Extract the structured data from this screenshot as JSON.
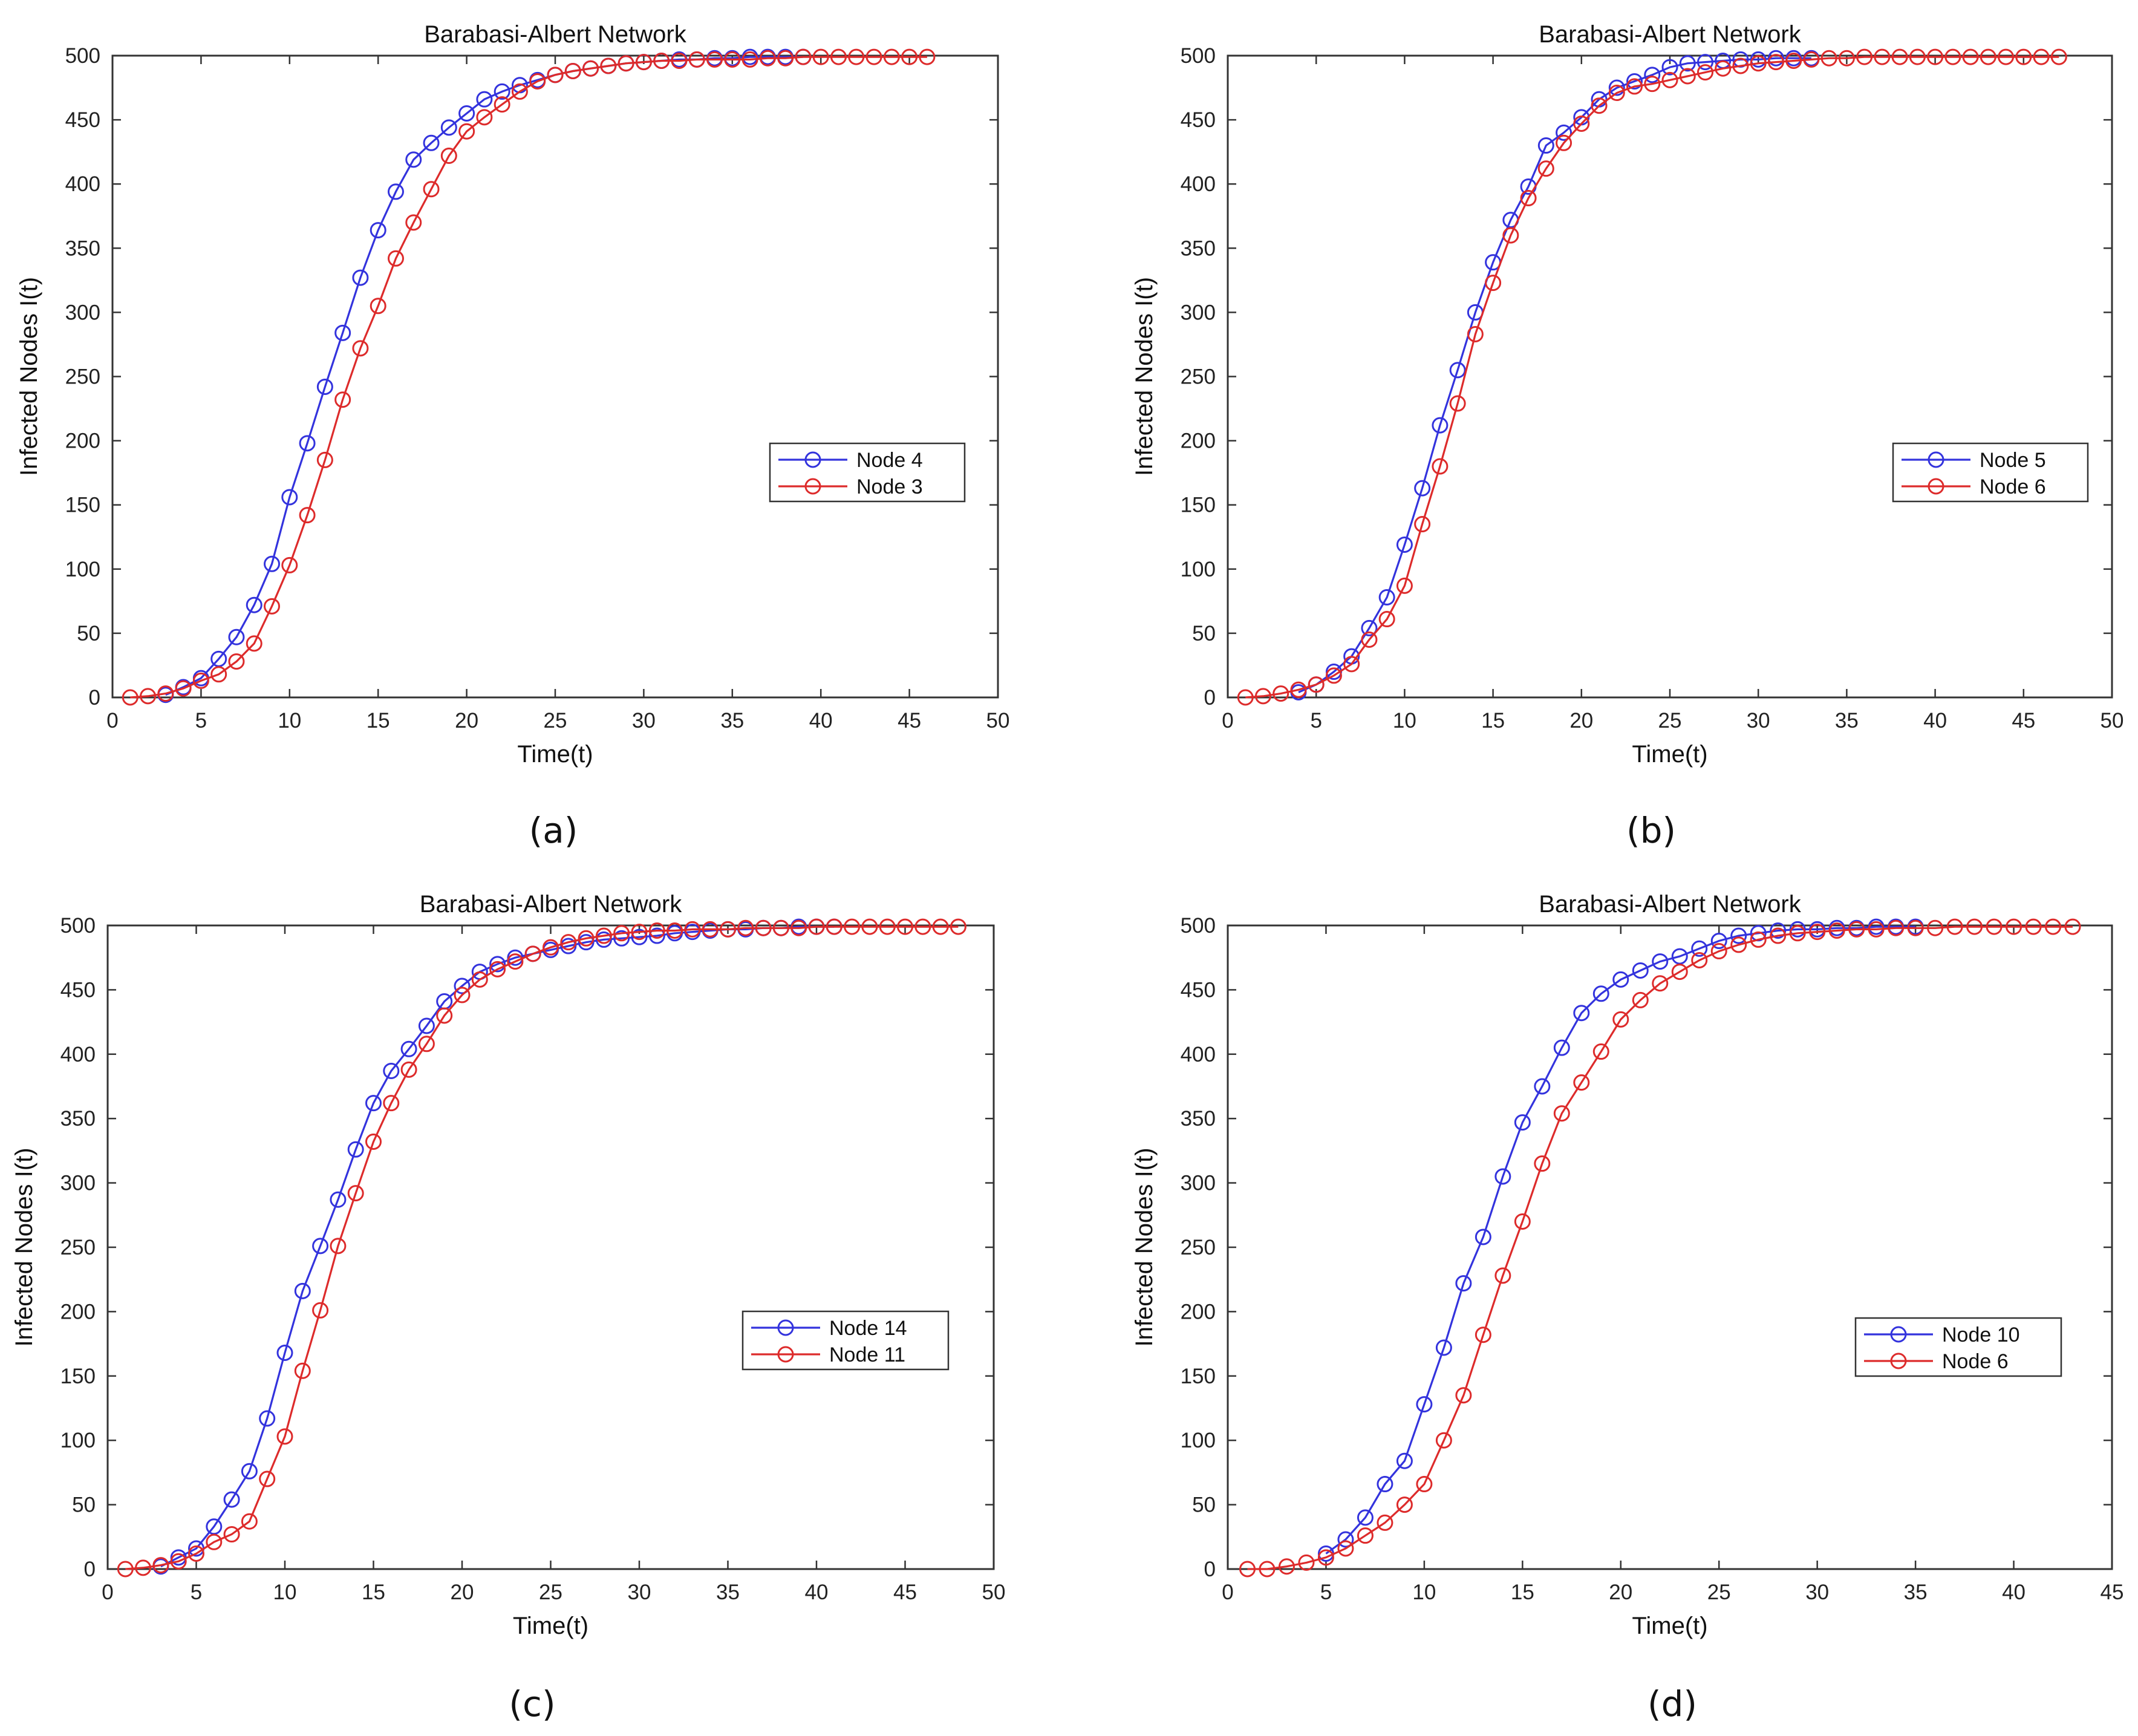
{
  "chart_data": [
    {
      "panel": "(a)",
      "type": "line",
      "title": "Barabasi-Albert Network",
      "xlabel": "Time(t)",
      "ylabel": "Infected Nodes I(t)",
      "xlim": [
        0,
        50
      ],
      "ylim": [
        0,
        500
      ],
      "xticks": [
        0,
        5,
        10,
        15,
        20,
        25,
        30,
        35,
        40,
        45,
        50
      ],
      "yticks": [
        0,
        50,
        100,
        150,
        200,
        250,
        300,
        350,
        400,
        450,
        500
      ],
      "legend_position": "right-middle",
      "series": [
        {
          "name": "Node 4",
          "color": "#3333dd",
          "x": [
            3,
            4,
            5,
            6,
            7,
            8,
            9,
            10,
            11,
            12,
            13,
            14,
            15,
            16,
            17,
            18,
            19,
            20,
            21,
            22,
            23,
            24,
            25,
            26,
            27,
            28,
            29,
            30,
            31,
            32,
            33,
            34,
            35,
            36,
            37,
            38,
            39
          ],
          "y": [
            2,
            8,
            15,
            30,
            47,
            72,
            104,
            156,
            198,
            242,
            284,
            327,
            364,
            394,
            419,
            432,
            444,
            455,
            466,
            472,
            477,
            481,
            485,
            488,
            490,
            492,
            494,
            495,
            496,
            497,
            497,
            498,
            498,
            499,
            499,
            499,
            499
          ]
        },
        {
          "name": "Node 3",
          "color": "#dd2b2b",
          "x": [
            1,
            2,
            3,
            4,
            5,
            6,
            7,
            8,
            9,
            10,
            11,
            12,
            13,
            14,
            15,
            16,
            17,
            18,
            19,
            20,
            21,
            22,
            23,
            24,
            25,
            26,
            27,
            28,
            29,
            30,
            31,
            32,
            33,
            34,
            35,
            36,
            37,
            38,
            39,
            40,
            41,
            42,
            43,
            44,
            45,
            46
          ],
          "y": [
            0,
            1,
            3,
            7,
            13,
            18,
            28,
            42,
            71,
            103,
            142,
            185,
            232,
            272,
            305,
            342,
            370,
            396,
            422,
            441,
            452,
            462,
            472,
            480,
            485,
            488,
            490,
            492,
            494,
            495,
            496,
            496,
            497,
            497,
            497,
            497,
            498,
            498,
            499,
            499,
            499,
            499,
            499,
            499,
            499,
            499
          ]
        }
      ]
    },
    {
      "panel": "(b)",
      "type": "line",
      "title": "Barabasi-Albert Network",
      "xlabel": "Time(t)",
      "ylabel": "Infected Nodes I(t)",
      "xlim": [
        0,
        50
      ],
      "ylim": [
        0,
        500
      ],
      "xticks": [
        0,
        5,
        10,
        15,
        20,
        25,
        30,
        35,
        40,
        45,
        50
      ],
      "yticks": [
        0,
        50,
        100,
        150,
        200,
        250,
        300,
        350,
        400,
        450,
        500
      ],
      "legend_position": "right-middle",
      "series": [
        {
          "name": "Node 5",
          "color": "#3333dd",
          "x": [
            4,
            5,
            6,
            7,
            8,
            9,
            10,
            11,
            12,
            13,
            14,
            15,
            16,
            17,
            18,
            19,
            20,
            21,
            22,
            23,
            24,
            25,
            26,
            27,
            28,
            29,
            30,
            31,
            32,
            33
          ],
          "y": [
            4,
            10,
            20,
            32,
            54,
            78,
            119,
            163,
            212,
            255,
            300,
            339,
            372,
            398,
            430,
            440,
            452,
            466,
            475,
            480,
            485,
            491,
            494,
            495,
            496,
            497,
            497,
            498,
            498,
            498
          ]
        },
        {
          "name": "Node 6",
          "color": "#dd2b2b",
          "x": [
            1,
            2,
            3,
            4,
            5,
            6,
            7,
            8,
            9,
            10,
            11,
            12,
            13,
            14,
            15,
            16,
            17,
            18,
            19,
            20,
            21,
            22,
            23,
            24,
            25,
            26,
            27,
            28,
            29,
            30,
            31,
            32,
            33,
            34,
            35,
            36,
            37,
            38,
            39,
            40,
            41,
            42,
            43,
            44,
            45,
            46,
            47
          ],
          "y": [
            0,
            1,
            3,
            6,
            10,
            17,
            26,
            45,
            61,
            87,
            135,
            180,
            229,
            283,
            323,
            360,
            389,
            412,
            432,
            447,
            461,
            471,
            476,
            478,
            481,
            484,
            487,
            490,
            492,
            494,
            495,
            496,
            497,
            498,
            498,
            499,
            499,
            499,
            499,
            499,
            499,
            499,
            499,
            499,
            499,
            499,
            499
          ]
        }
      ]
    },
    {
      "panel": "(c)",
      "type": "line",
      "title": "Barabasi-Albert Network",
      "xlabel": "Time(t)",
      "ylabel": "Infected Nodes I(t)",
      "xlim": [
        0,
        50
      ],
      "ylim": [
        0,
        500
      ],
      "xticks": [
        0,
        5,
        10,
        15,
        20,
        25,
        30,
        35,
        40,
        45,
        50
      ],
      "yticks": [
        0,
        50,
        100,
        150,
        200,
        250,
        300,
        350,
        400,
        450,
        500
      ],
      "legend_position": "right-middle",
      "series": [
        {
          "name": "Node 14",
          "color": "#3333dd",
          "x": [
            3,
            4,
            5,
            6,
            7,
            8,
            9,
            10,
            11,
            12,
            13,
            14,
            15,
            16,
            17,
            18,
            19,
            20,
            21,
            22,
            23,
            24,
            25,
            26,
            27,
            28,
            29,
            30,
            31,
            32,
            33,
            34,
            35,
            36,
            37,
            38,
            39,
            40,
            41
          ],
          "y": [
            2,
            9,
            16,
            33,
            54,
            76,
            117,
            168,
            216,
            251,
            287,
            326,
            362,
            387,
            404,
            422,
            441,
            453,
            464,
            470,
            475,
            478,
            481,
            484,
            487,
            489,
            490,
            491,
            492,
            494,
            495,
            496,
            497,
            497,
            498,
            498,
            499,
            499,
            499
          ]
        },
        {
          "name": "Node 11",
          "color": "#dd2b2b",
          "x": [
            1,
            2,
            3,
            4,
            5,
            6,
            7,
            8,
            9,
            10,
            11,
            12,
            13,
            14,
            15,
            16,
            17,
            18,
            19,
            20,
            21,
            22,
            23,
            24,
            25,
            26,
            27,
            28,
            29,
            30,
            31,
            32,
            33,
            34,
            35,
            36,
            37,
            38,
            39,
            40,
            41,
            42,
            43,
            44,
            45,
            46,
            47,
            48
          ],
          "y": [
            0,
            1,
            3,
            6,
            12,
            21,
            27,
            37,
            70,
            103,
            154,
            201,
            251,
            292,
            332,
            362,
            388,
            408,
            430,
            446,
            458,
            466,
            472,
            478,
            483,
            487,
            490,
            492,
            494,
            495,
            496,
            496,
            497,
            497,
            497,
            498,
            498,
            498,
            498,
            499,
            499,
            499,
            499,
            499,
            499,
            499,
            499,
            499
          ]
        }
      ]
    },
    {
      "panel": "(d)",
      "type": "line",
      "title": "Barabasi-Albert Network",
      "xlabel": "Time(t)",
      "ylabel": "Infected Nodes I(t)",
      "xlim": [
        0,
        45
      ],
      "ylim": [
        0,
        500
      ],
      "xticks": [
        0,
        5,
        10,
        15,
        20,
        25,
        30,
        35,
        40,
        45
      ],
      "yticks": [
        0,
        50,
        100,
        150,
        200,
        250,
        300,
        350,
        400,
        450,
        500
      ],
      "legend_position": "right-middle",
      "series": [
        {
          "name": "Node 10",
          "color": "#3333dd",
          "x": [
            5,
            6,
            7,
            8,
            9,
            10,
            11,
            12,
            13,
            14,
            15,
            16,
            17,
            18,
            19,
            20,
            21,
            22,
            23,
            24,
            25,
            26,
            27,
            28,
            29,
            30,
            31,
            32,
            33,
            34,
            35
          ],
          "y": [
            12,
            23,
            40,
            66,
            84,
            128,
            172,
            222,
            258,
            305,
            347,
            375,
            405,
            432,
            447,
            458,
            465,
            472,
            476,
            482,
            488,
            492,
            494,
            496,
            497,
            497,
            498,
            498,
            499,
            499,
            499
          ]
        },
        {
          "name": "Node 6",
          "color": "#dd2b2b",
          "x": [
            1,
            2,
            3,
            4,
            5,
            6,
            7,
            8,
            9,
            10,
            11,
            12,
            13,
            14,
            15,
            16,
            17,
            18,
            19,
            20,
            21,
            22,
            23,
            24,
            25,
            26,
            27,
            28,
            29,
            30,
            31,
            32,
            33,
            34,
            35,
            36,
            37,
            38,
            39,
            40,
            41,
            42,
            43
          ],
          "y": [
            0,
            0,
            2,
            5,
            9,
            16,
            26,
            36,
            50,
            66,
            100,
            135,
            182,
            228,
            270,
            315,
            354,
            378,
            402,
            427,
            442,
            455,
            464,
            473,
            480,
            485,
            489,
            492,
            494,
            495,
            496,
            497,
            497,
            498,
            498,
            498,
            499,
            499,
            499,
            499,
            499,
            499,
            499
          ]
        }
      ]
    }
  ]
}
